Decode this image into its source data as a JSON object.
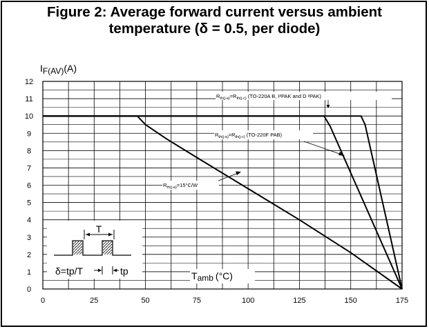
{
  "figure": {
    "title_line1": "Figure 2: Average forward current versus ambient",
    "title_line2": "temperature (δ = 0.5, per diode)"
  },
  "chart_data": {
    "type": "line",
    "ylabel": {
      "main": "I",
      "sub": "F(AV)",
      "unit": "(A)"
    },
    "xlabel": {
      "main": "T",
      "sub": "amb",
      "unit": "(°C)"
    },
    "xlim": [
      0,
      175
    ],
    "ylim": [
      0,
      12
    ],
    "x_ticks": [
      0,
      25,
      50,
      75,
      100,
      125,
      150,
      175
    ],
    "y_ticks": [
      0,
      1,
      2,
      3,
      4,
      5,
      6,
      7,
      8,
      9,
      10,
      11,
      12
    ],
    "grid": true,
    "series": [
      {
        "name": "Rth(j-a)=Rth(j-c) (TO-220A B, I²PAK and D²PAK)",
        "label_parts": {
          "a": "R",
          "a_sub": "th(j-a)",
          "b": "=R",
          "b_sub": "th(j-c)",
          "tail": " (TO-220A B, I²PAK and D ²PAK)"
        },
        "x": [
          0,
          155,
          157,
          175
        ],
        "y": [
          10,
          10,
          9.5,
          0
        ]
      },
      {
        "name": "Rth(j-a)=Rth(j-c) (TO-220F PAB)",
        "label_parts": {
          "a": "R",
          "a_sub": "th(j-a)",
          "b": "=R",
          "b_sub": "th(j-c)",
          "tail": " (TO-220F PAB)"
        },
        "x": [
          0,
          137,
          140,
          175
        ],
        "y": [
          10,
          10,
          9.4,
          0
        ]
      },
      {
        "name": "Rth(j-a)=15°C/W",
        "label_parts": {
          "a": "R",
          "a_sub": "th(j-a)",
          "b": "=15°C/W",
          "b_sub": "",
          "tail": ""
        },
        "x": [
          0,
          46,
          50,
          60,
          75,
          100,
          125,
          150,
          175
        ],
        "y": [
          10,
          10,
          9.5,
          8.7,
          7.6,
          5.8,
          4.0,
          2.1,
          0
        ]
      }
    ],
    "inset": {
      "period_label": "T",
      "duty_label": "δ=tp/T",
      "pulse_label": "tp"
    }
  }
}
